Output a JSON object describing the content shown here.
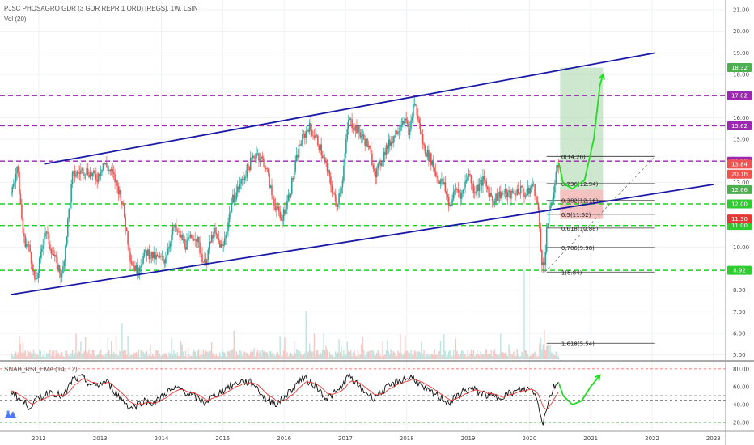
{
  "header": {
    "title": "PJSC PHOSAGRO GDR (3 GDR REPR 1 ORD) [REGS], 1W, LSIN",
    "vol_label": "Vol (20)",
    "rsi_label": "SNAB_RSI_EMA (14, 12)"
  },
  "colors": {
    "candle_up": "#26a69a",
    "candle_down": "#ef5350",
    "channel": "#1a1aa6",
    "purple_level": "#9c27b0",
    "green_level": "#1ecf1e",
    "arrow": "#22dd22",
    "target_zone": "#a5d6a7",
    "stop_zone": "#ef9a9a"
  },
  "chart_data": {
    "type": "candlestick",
    "x_axis": {
      "labels": [
        "2012",
        "2013",
        "2014",
        "2015",
        "2016",
        "2017",
        "2018",
        "2019",
        "2020",
        "2021",
        "2022",
        "2023"
      ],
      "range": [
        2011.5,
        2023.2
      ]
    },
    "y_axis": {
      "labels": [
        "5.00",
        "6.00",
        "7.00",
        "8.00",
        "9.00",
        "10.00",
        "11.00",
        "12.00",
        "13.00",
        "14.00",
        "15.00",
        "16.00",
        "17.00",
        "18.00",
        "19.00",
        "20.00",
        "21.00"
      ],
      "range": [
        4.8,
        21.3
      ]
    },
    "price_path": [
      [
        2011.55,
        12.4
      ],
      [
        2011.65,
        13.8
      ],
      [
        2011.75,
        10.4
      ],
      [
        2011.85,
        9.9
      ],
      [
        2011.95,
        8.2
      ],
      [
        2012.1,
        10.8
      ],
      [
        2012.25,
        9.5
      ],
      [
        2012.38,
        8.6
      ],
      [
        2012.55,
        13.3
      ],
      [
        2012.75,
        13.6
      ],
      [
        2012.95,
        13.2
      ],
      [
        2013.05,
        13.9
      ],
      [
        2013.2,
        13.4
      ],
      [
        2013.35,
        12.3
      ],
      [
        2013.5,
        9.4
      ],
      [
        2013.6,
        8.9
      ],
      [
        2013.75,
        9.8
      ],
      [
        2013.9,
        9.5
      ],
      [
        2014.05,
        9.4
      ],
      [
        2014.2,
        10.9
      ],
      [
        2014.4,
        10.1
      ],
      [
        2014.55,
        10.6
      ],
      [
        2014.7,
        9.2
      ],
      [
        2014.85,
        10.7
      ],
      [
        2015.0,
        9.9
      ],
      [
        2015.15,
        12.1
      ],
      [
        2015.3,
        13.0
      ],
      [
        2015.45,
        13.9
      ],
      [
        2015.55,
        14.4
      ],
      [
        2015.7,
        13.8
      ],
      [
        2015.8,
        12.4
      ],
      [
        2015.95,
        11.2
      ],
      [
        2016.1,
        12.6
      ],
      [
        2016.25,
        14.7
      ],
      [
        2016.4,
        15.6
      ],
      [
        2016.55,
        14.9
      ],
      [
        2016.7,
        13.6
      ],
      [
        2016.85,
        11.9
      ],
      [
        2016.95,
        13.1
      ],
      [
        2017.05,
        15.9
      ],
      [
        2017.2,
        15.4
      ],
      [
        2017.35,
        14.8
      ],
      [
        2017.5,
        13.4
      ],
      [
        2017.65,
        14.5
      ],
      [
        2017.8,
        15.2
      ],
      [
        2017.95,
        16.0
      ],
      [
        2018.05,
        15.3
      ],
      [
        2018.12,
        16.8
      ],
      [
        2018.2,
        15.7
      ],
      [
        2018.28,
        14.6
      ],
      [
        2018.4,
        14.0
      ],
      [
        2018.5,
        13.2
      ],
      [
        2018.6,
        12.9
      ],
      [
        2018.7,
        11.9
      ],
      [
        2018.8,
        12.7
      ],
      [
        2018.9,
        12.4
      ],
      [
        2019.0,
        13.5
      ],
      [
        2019.1,
        12.6
      ],
      [
        2019.25,
        13.1
      ],
      [
        2019.4,
        12.2
      ],
      [
        2019.55,
        12.5
      ],
      [
        2019.7,
        12.4
      ],
      [
        2019.85,
        12.7
      ],
      [
        2019.95,
        12.4
      ],
      [
        2020.05,
        12.9
      ],
      [
        2020.1,
        12.5
      ],
      [
        2020.15,
        11.5
      ],
      [
        2020.2,
        9.4
      ],
      [
        2020.24,
        9.0
      ],
      [
        2020.28,
        10.9
      ],
      [
        2020.33,
        11.6
      ],
      [
        2020.38,
        12.3
      ],
      [
        2020.43,
        13.3
      ],
      [
        2020.48,
        13.85
      ]
    ],
    "channel_lines": [
      {
        "from": [
          2011.55,
          7.8
        ],
        "to": [
          2023.0,
          12.9
        ]
      },
      {
        "from": [
          2012.1,
          13.85
        ],
        "to": [
          2022.05,
          19.0
        ]
      }
    ],
    "horizontal_levels": [
      {
        "value": 17.02,
        "label": "17.02",
        "color": "#9c27b0"
      },
      {
        "value": 15.62,
        "label": "15.62",
        "color": "#9c27b0"
      },
      {
        "value": 13.98,
        "label": "13.98",
        "color": "#9c27b0"
      },
      {
        "value": 12.0,
        "label": "12.00",
        "color": "#1ecf1e"
      },
      {
        "value": 11.0,
        "label": "11.00",
        "color": "#1ecf1e"
      },
      {
        "value": 8.92,
        "label": "8.92",
        "color": "#1ecf1e"
      }
    ],
    "price_badges": [
      {
        "value": 18.32,
        "label": "18.32",
        "color": "#4caf50"
      },
      {
        "value": 13.84,
        "label": "13.84",
        "color": "#ef5350"
      },
      {
        "value": 13.38,
        "label": "20.1h",
        "color": "#ef5350"
      },
      {
        "value": 12.66,
        "label": "12.66",
        "color": "#4caf50"
      },
      {
        "value": 11.3,
        "label": "11.30",
        "color": "#e53935"
      }
    ],
    "fibonacci": [
      {
        "ratio": "0",
        "price": 14.2,
        "label": "0(14.20)"
      },
      {
        "ratio": "0.236",
        "price": 12.94,
        "label": "0.236(12.94)"
      },
      {
        "ratio": "0.382",
        "price": 12.16,
        "label": "0.382(12.16)"
      },
      {
        "ratio": "0.5",
        "price": 11.52,
        "label": "0.5(11.52)"
      },
      {
        "ratio": "0.618",
        "price": 10.88,
        "label": "0.618(10.88)"
      },
      {
        "ratio": "0.786",
        "price": 9.98,
        "label": "0.786(9.98)"
      },
      {
        "ratio": "1",
        "price": 8.84,
        "label": "1(8.84)"
      },
      {
        "ratio": "1.618",
        "price": 5.54,
        "label": "1.618(5.54)"
      }
    ],
    "target_zone": {
      "x": [
        2020.5,
        2021.2
      ],
      "price": [
        12.66,
        18.32
      ]
    },
    "stop_zone": {
      "x": [
        2020.5,
        2021.2
      ],
      "price": [
        11.3,
        12.66
      ]
    },
    "forecast_path": [
      [
        2020.48,
        13.9
      ],
      [
        2020.55,
        12.95
      ],
      [
        2020.7,
        12.7
      ],
      [
        2020.9,
        13.1
      ],
      [
        2021.05,
        15.0
      ],
      [
        2021.15,
        17.5
      ],
      [
        2021.2,
        18.0
      ]
    ],
    "rsi": {
      "y_labels": [
        "20.00",
        "40.00",
        "60.00",
        "80.00"
      ],
      "range": [
        12,
        88
      ],
      "levels": [
        80,
        50,
        45,
        20
      ],
      "path": [
        [
          2011.55,
          56
        ],
        [
          2011.7,
          45
        ],
        [
          2011.85,
          38
        ],
        [
          2012.0,
          47
        ],
        [
          2012.2,
          55
        ],
        [
          2012.4,
          48
        ],
        [
          2012.55,
          68
        ],
        [
          2012.7,
          70
        ],
        [
          2012.9,
          60
        ],
        [
          2013.1,
          66
        ],
        [
          2013.3,
          50
        ],
        [
          2013.5,
          36
        ],
        [
          2013.7,
          44
        ],
        [
          2013.9,
          42
        ],
        [
          2014.1,
          55
        ],
        [
          2014.3,
          58
        ],
        [
          2014.5,
          50
        ],
        [
          2014.7,
          42
        ],
        [
          2014.9,
          52
        ],
        [
          2015.1,
          60
        ],
        [
          2015.3,
          66
        ],
        [
          2015.5,
          64
        ],
        [
          2015.7,
          46
        ],
        [
          2015.9,
          41
        ],
        [
          2016.1,
          55
        ],
        [
          2016.3,
          70
        ],
        [
          2016.5,
          62
        ],
        [
          2016.7,
          47
        ],
        [
          2016.9,
          56
        ],
        [
          2017.05,
          72
        ],
        [
          2017.25,
          58
        ],
        [
          2017.45,
          48
        ],
        [
          2017.65,
          57
        ],
        [
          2017.85,
          66
        ],
        [
          2018.1,
          71
        ],
        [
          2018.3,
          56
        ],
        [
          2018.5,
          50
        ],
        [
          2018.7,
          42
        ],
        [
          2018.9,
          54
        ],
        [
          2019.05,
          58
        ],
        [
          2019.25,
          52
        ],
        [
          2019.45,
          48
        ],
        [
          2019.65,
          52
        ],
        [
          2019.85,
          56
        ],
        [
          2020.05,
          58
        ],
        [
          2020.15,
          40
        ],
        [
          2020.22,
          19
        ],
        [
          2020.3,
          42
        ],
        [
          2020.4,
          60
        ],
        [
          2020.48,
          66
        ]
      ],
      "forecast_path": [
        [
          2020.48,
          64
        ],
        [
          2020.55,
          50
        ],
        [
          2020.7,
          40
        ],
        [
          2020.85,
          44
        ],
        [
          2021.0,
          60
        ],
        [
          2021.15,
          73
        ]
      ]
    }
  }
}
